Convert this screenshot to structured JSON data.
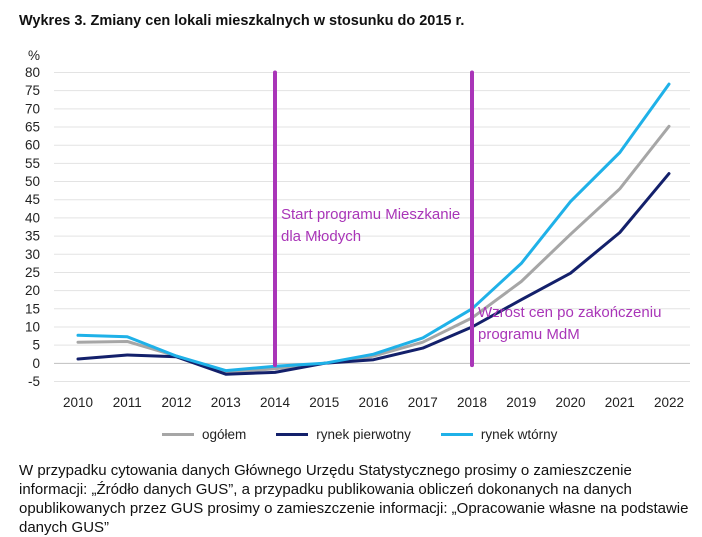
{
  "title": "Wykres 3. Zmiany cen lokali mieszkalnych w stosunku do 2015 r.",
  "chart_data": {
    "type": "line",
    "ylabel": "%",
    "ylim": [
      -5,
      80
    ],
    "yticks": [
      -5,
      0,
      5,
      10,
      15,
      20,
      25,
      30,
      35,
      40,
      45,
      50,
      55,
      60,
      65,
      70,
      75,
      80
    ],
    "gridlines": true,
    "x": [
      "2010",
      "2011",
      "2012",
      "2013",
      "2014",
      "2015",
      "2016",
      "2017",
      "2018",
      "2019",
      "2020",
      "2021",
      "2022"
    ],
    "series": [
      {
        "name": "ogółem",
        "color": "#a6a6a6",
        "values": [
          5.8,
          6,
          2,
          -2.5,
          -1.5,
          0,
          2,
          5.8,
          12.5,
          22.5,
          35.5,
          48,
          65.2
        ]
      },
      {
        "name": "rynek pierwotny",
        "color": "#13206b",
        "values": [
          1.2,
          2.3,
          1.8,
          -3,
          -2.5,
          0,
          1,
          4.2,
          10,
          17.5,
          24.8,
          36,
          52.2
        ]
      },
      {
        "name": "rynek wtórny",
        "color": "#1fb1e8",
        "values": [
          7.7,
          7.3,
          2,
          -2,
          -0.8,
          0,
          2.5,
          7,
          15,
          27.5,
          44.5,
          58,
          76.8
        ]
      }
    ],
    "annotations": [
      {
        "x": "2014",
        "color": "#a935b8",
        "label_lines": [
          "Start programu Mieszkanie",
          "dla Młodych"
        ]
      },
      {
        "x": "2018",
        "color": "#a935b8",
        "label_lines": [
          "Wzrost cen po zakończeniu",
          "programu MdM"
        ]
      }
    ]
  },
  "legend": [
    {
      "label": "ogółem",
      "color": "#a6a6a6"
    },
    {
      "label": "rynek pierwotny",
      "color": "#13206b"
    },
    {
      "label": "rynek wtórny",
      "color": "#1fb1e8"
    }
  ],
  "note": "W przypadku cytowania danych Głównego Urzędu Statystycznego prosimy o zamieszczenie informacji: „Źródło danych GUS”, a przypadku publikowania obliczeń dokonanych na danych opublikowanych przez GUS prosimy o zamieszczenie informacji: „Opracowanie własne na podstawie danych GUS”"
}
